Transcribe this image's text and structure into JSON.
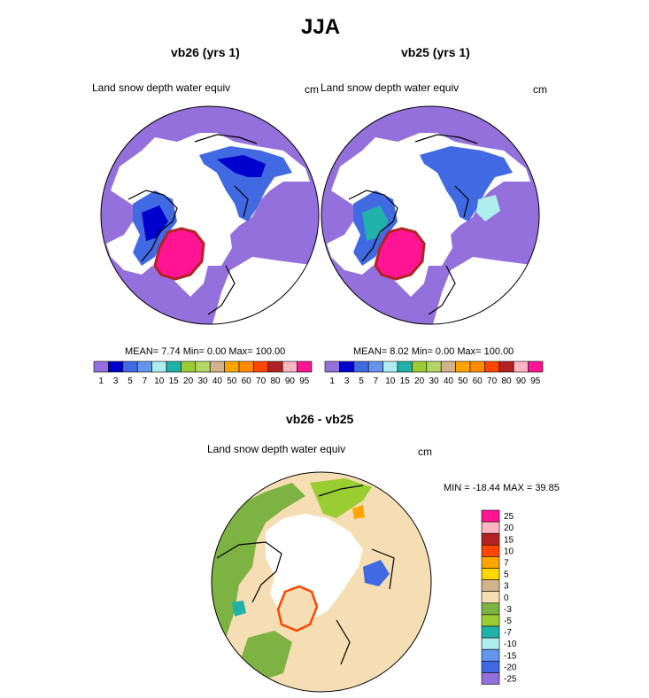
{
  "figure": {
    "title": "JJA",
    "diff_stats": "MIN = -18.44 MAX =  39.85"
  },
  "panels": [
    {
      "id": "vb26",
      "subtitle": "vb26 (yrs 1)",
      "variable": "Land snow depth water equiv",
      "units": "cm",
      "stats": "MEAN=  7.74  Min=   0.00  Max= 100.00"
    },
    {
      "id": "vb25",
      "subtitle": "vb25 (yrs 1)",
      "variable": "Land snow depth water equiv",
      "units": "cm",
      "stats": "MEAN=  8.02  Min=   0.00  Max= 100.00"
    },
    {
      "id": "diff",
      "subtitle": "vb26 - vb25",
      "variable": "Land snow depth water equiv",
      "units": "cm"
    }
  ],
  "chart_data": [
    {
      "type": "heatmap",
      "projection": "polar-stereographic-north",
      "title": "vb26 (yrs 1)",
      "variable": "Land snow depth water equiv",
      "units": "cm",
      "mean": 7.74,
      "min": 0.0,
      "max": 100.0,
      "colorbar_levels": [
        "1",
        "3",
        "5",
        "7",
        "10",
        "15",
        "20",
        "30",
        "40",
        "50",
        "60",
        "70",
        "80",
        "90",
        "95"
      ],
      "colorbar_colors": [
        "#9370db",
        "#0000cd",
        "#4169e1",
        "#6495ed",
        "#afeeee",
        "#20b2aa",
        "#9acd32",
        "#b3d763",
        "#d2b48c",
        "#ffa500",
        "#ff8c00",
        "#ff4500",
        "#b22222",
        "#ffb6c1",
        "#ff1493"
      ]
    },
    {
      "type": "heatmap",
      "projection": "polar-stereographic-north",
      "title": "vb25 (yrs 1)",
      "variable": "Land snow depth water equiv",
      "units": "cm",
      "mean": 8.02,
      "min": 0.0,
      "max": 100.0,
      "colorbar_levels": [
        "1",
        "3",
        "5",
        "7",
        "10",
        "15",
        "20",
        "30",
        "40",
        "50",
        "60",
        "70",
        "80",
        "90",
        "95"
      ],
      "colorbar_colors": [
        "#9370db",
        "#0000cd",
        "#4169e1",
        "#6495ed",
        "#afeeee",
        "#20b2aa",
        "#9acd32",
        "#b3d763",
        "#d2b48c",
        "#ffa500",
        "#ff8c00",
        "#ff4500",
        "#b22222",
        "#ffb6c1",
        "#ff1493"
      ]
    },
    {
      "type": "heatmap",
      "projection": "polar-stereographic-north",
      "title": "vb26 - vb25",
      "variable": "Land snow depth water equiv",
      "units": "cm",
      "min": -18.44,
      "max": 39.85,
      "colorbar_levels": [
        "25",
        "20",
        "15",
        "10",
        "7",
        "5",
        "3",
        "0",
        "-3",
        "-5",
        "-7",
        "-10",
        "-15",
        "-20",
        "-25"
      ],
      "colorbar_colors": [
        "#ff1493",
        "#ffb6c1",
        "#b22222",
        "#ff4500",
        "#ffa500",
        "#ffd700",
        "#d2b48c",
        "#f5deb3",
        "#7cb342",
        "#9acd32",
        "#20b2aa",
        "#afeeee",
        "#6495ed",
        "#4169e1",
        "#9370db"
      ]
    }
  ]
}
